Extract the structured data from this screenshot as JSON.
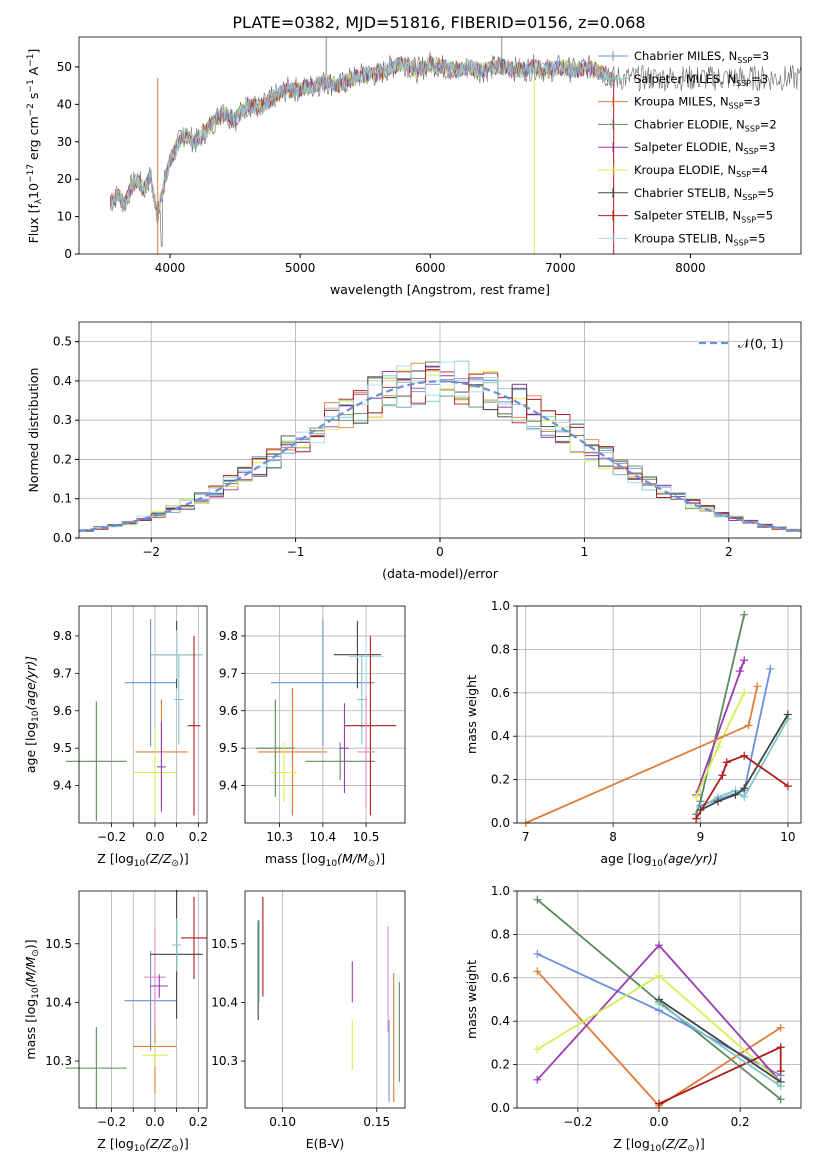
{
  "title": "PLATE=0382, MJD=51816, FIBERID=0156, z=0.068",
  "colors": {
    "c0": "#6a8fdc",
    "c1": "#7ec7c9",
    "c2": "#e07b3a",
    "c3": "#5b8a5e",
    "c4": "#9a3bb0",
    "c5": "#d6ee55",
    "c6": "#444444",
    "c7": "#b01a1a",
    "c8": "#a7dce4",
    "pink": "#e985c6"
  },
  "chart_data": [
    {
      "id": "spectrum",
      "type": "line",
      "xlabel": "wavelength [Angstrom, rest frame]",
      "ylabel": "Flux [f",
      "ylabel_parts": [
        "Flux [f",
        "λ",
        "10",
        "−17",
        " erg cm",
        "−2",
        " s",
        "−1",
        " A",
        "−1",
        "]"
      ],
      "xlim": [
        3300,
        8850
      ],
      "ylim": [
        0,
        58
      ],
      "xticks": [
        "4000",
        "5000",
        "6000",
        "7000",
        "8000"
      ],
      "yticks": [
        "0",
        "10",
        "20",
        "30",
        "40",
        "50"
      ],
      "x": [
        3550,
        3600,
        3650,
        3700,
        3750,
        3800,
        3850,
        3900,
        3950,
        4000,
        4100,
        4200,
        4300,
        4400,
        4500,
        4600,
        4700,
        4800,
        4900,
        5000,
        5100,
        5200,
        5300,
        5400,
        5500,
        5600,
        5700,
        5800,
        5900,
        6000,
        6100,
        6200,
        6300,
        6400,
        6500,
        6600,
        6700,
        6800,
        6900,
        7000,
        7100,
        7200,
        7300,
        7400
      ],
      "y": [
        14,
        16,
        13,
        18,
        20,
        17,
        21,
        10,
        18,
        25,
        32,
        30,
        34,
        38,
        36,
        40,
        39,
        42,
        44,
        44,
        45,
        46,
        45,
        47,
        48,
        48,
        50,
        51,
        49,
        51,
        50,
        49,
        50,
        49,
        50,
        50,
        49,
        50,
        49,
        50,
        49,
        50,
        49,
        47
      ],
      "legend": [
        {
          "label": "Chabrier MILES, N",
          "sub": "SSP",
          "tail": "=3",
          "color": "c0"
        },
        {
          "label": "Salpeter MILES, N",
          "sub": "SSP",
          "tail": "=3",
          "color": "c1"
        },
        {
          "label": "Kroupa MILES, N",
          "sub": "SSP",
          "tail": "=3",
          "color": "c2"
        },
        {
          "label": "Chabrier ELODIE, N",
          "sub": "SSP",
          "tail": "=2",
          "color": "c3"
        },
        {
          "label": "Salpeter ELODIE, N",
          "sub": "SSP",
          "tail": "=3",
          "color": "c4"
        },
        {
          "label": "Kroupa ELODIE, N",
          "sub": "SSP",
          "tail": "=4",
          "color": "c5"
        },
        {
          "label": "Chabrier STELIB, N",
          "sub": "SSP",
          "tail": "=5",
          "color": "c6"
        },
        {
          "label": "Salpeter STELIB, N",
          "sub": "SSP",
          "tail": "=5",
          "color": "c7"
        },
        {
          "label": "Kroupa STELIB, N",
          "sub": "SSP",
          "tail": "=5",
          "color": "c8"
        }
      ]
    },
    {
      "id": "residuals",
      "type": "line",
      "xlabel": "(data-model)/error",
      "ylabel": "Normed distribution",
      "xlim": [
        -2.5,
        2.5
      ],
      "ylim": [
        0,
        0.55
      ],
      "xticks": [
        "−2",
        "−1",
        "0",
        "1",
        "2"
      ],
      "yticks": [
        "0.0",
        "0.1",
        "0.2",
        "0.3",
        "0.4",
        "0.5"
      ],
      "grid": true,
      "legend_label": "𝒩(0, 1)",
      "gaussian": {
        "mu": 0,
        "sigma": 1
      }
    },
    {
      "id": "z-age",
      "type": "scatter",
      "xlabel": "Z [log",
      "xlabel_parts": [
        "Z [log",
        "10",
        "(Z/Z",
        "⊙",
        ")]"
      ],
      "ylabel_parts": [
        "age  [log",
        "10",
        "(age/yr)]"
      ],
      "xlim": [
        -0.35,
        0.24
      ],
      "ylim": [
        9.3,
        9.88
      ],
      "xticks": [
        -0.2,
        -0.1,
        0.0,
        0.1,
        0.2
      ],
      "xticklabels": [
        "−0.2",
        "",
        "0.0",
        "",
        "0.2"
      ],
      "yticks": [
        9.4,
        9.5,
        9.6,
        9.7,
        9.8
      ],
      "yticklabels": [
        "9.4",
        "9.5",
        "9.6",
        "9.7",
        "9.8"
      ],
      "points": [
        {
          "x": -0.27,
          "xerr": 0.14,
          "y": 9.465,
          "yerr": 0.16,
          "color": "c3"
        },
        {
          "x": -0.02,
          "xerr": 0.12,
          "y": 9.675,
          "yerr": 0.17,
          "color": "c0"
        },
        {
          "x": 0.03,
          "xerr": 0.12,
          "y": 9.49,
          "yerr": 0.14,
          "color": "c2"
        },
        {
          "x": 0.0,
          "xerr": 0.1,
          "y": 9.435,
          "yerr": 0.12,
          "color": "c5"
        },
        {
          "x": 0.1,
          "xerr": 0.12,
          "y": 9.75,
          "yerr": 0.09,
          "color": "c6"
        },
        {
          "x": 0.1,
          "xerr": 0.12,
          "y": 9.75,
          "yerr": 0.065,
          "color": "c8"
        },
        {
          "x": 0.11,
          "xerr": 0.02,
          "y": 9.63,
          "yerr": 0.12,
          "color": "c1"
        },
        {
          "x": 0.18,
          "xerr": 0.03,
          "y": 9.56,
          "yerr": 0.24,
          "color": "c7"
        },
        {
          "x": 0.03,
          "xerr": 0.02,
          "y": 9.45,
          "yerr": 0.12,
          "color": "c4"
        }
      ]
    },
    {
      "id": "mass-age",
      "type": "scatter",
      "xlabel_parts": [
        "mass [log",
        "10",
        "(M/M",
        "⊙",
        ")]"
      ],
      "xlim": [
        10.22,
        10.59
      ],
      "ylim": [
        9.3,
        9.88
      ],
      "xticks": [
        10.3,
        10.4,
        10.5
      ],
      "xticklabels": [
        "10.3",
        "10.4",
        "10.5"
      ],
      "yticks": [
        9.4,
        9.5,
        9.6,
        9.7,
        9.8
      ],
      "yticklabels": [
        "9.4",
        "9.5",
        "9.6",
        "9.7",
        "9.8"
      ],
      "points": [
        {
          "x": 10.29,
          "xerr": 0.045,
          "y": 9.5,
          "yerr": 0.13,
          "color": "c3"
        },
        {
          "x": 10.4,
          "xerr": 0.12,
          "y": 9.675,
          "yerr": 0.17,
          "color": "c0"
        },
        {
          "x": 10.33,
          "xerr": 0.08,
          "y": 9.49,
          "yerr": 0.17,
          "color": "c2"
        },
        {
          "x": 10.31,
          "xerr": 0.03,
          "y": 9.435,
          "yerr": 0.08,
          "color": "c5"
        },
        {
          "x": 10.44,
          "xerr": 0.08,
          "y": 9.465,
          "yerr": 0.05,
          "color": "c3"
        },
        {
          "x": 10.48,
          "xerr": 0.055,
          "y": 9.75,
          "yerr": 0.09,
          "color": "c6"
        },
        {
          "x": 10.5,
          "xerr": 0.04,
          "y": 9.745,
          "yerr": 0.07,
          "color": "c8"
        },
        {
          "x": 10.49,
          "xerr": 0.01,
          "y": 9.63,
          "yerr": 0.12,
          "color": "c1"
        },
        {
          "x": 10.51,
          "xerr": 0.06,
          "y": 9.56,
          "yerr": 0.24,
          "color": "c7"
        },
        {
          "x": 10.45,
          "xerr": 0.01,
          "y": 9.5,
          "yerr": 0.12,
          "color": "c4"
        },
        {
          "x": 10.5,
          "xerr": 0.02,
          "y": 9.49,
          "yerr": 0.15,
          "color": "pink"
        }
      ]
    },
    {
      "id": "age-weight",
      "type": "line",
      "xlabel_parts": [
        "age  [log",
        "10",
        "(age/yr)]"
      ],
      "ylabel": "mass weight",
      "xlim": [
        6.9,
        10.15
      ],
      "ylim": [
        0,
        1
      ],
      "xticks": [
        7,
        8,
        9,
        10
      ],
      "xticklabels": [
        "7",
        "8",
        "9",
        "10"
      ],
      "yticks": [
        0,
        0.2,
        0.4,
        0.6,
        0.8,
        1.0
      ],
      "yticklabels": [
        "0.0",
        "0.2",
        "0.4",
        "0.6",
        "0.8",
        "1.0"
      ],
      "grid": true,
      "series": [
        {
          "color": "c3",
          "x": [
            8.95,
            9.0,
            9.5
          ],
          "y": [
            0.04,
            0.1,
            0.96
          ]
        },
        {
          "color": "c4",
          "x": [
            8.95,
            9.5,
            9.45
          ],
          "y": [
            0.13,
            0.75,
            0.7
          ]
        },
        {
          "color": "c5",
          "x": [
            8.95,
            9.2,
            9.5
          ],
          "y": [
            0.12,
            0.35,
            0.6
          ]
        },
        {
          "color": "c0",
          "x": [
            9.0,
            9.5,
            9.8
          ],
          "y": [
            0.08,
            0.15,
            0.71
          ]
        },
        {
          "color": "c1",
          "x": [
            9.0,
            9.2,
            9.4,
            9.5,
            10.0
          ],
          "y": [
            0.07,
            0.12,
            0.15,
            0.12,
            0.48
          ]
        },
        {
          "color": "c6",
          "x": [
            9.0,
            9.2,
            9.4,
            9.5,
            10.0
          ],
          "y": [
            0.06,
            0.1,
            0.13,
            0.16,
            0.5
          ]
        },
        {
          "color": "c7",
          "x": [
            8.95,
            9.25,
            9.3,
            9.5,
            10.0
          ],
          "y": [
            0.02,
            0.22,
            0.28,
            0.31,
            0.17
          ]
        },
        {
          "color": "c2",
          "x": [
            7.0,
            9.55,
            9.65
          ],
          "y": [
            0.0,
            0.45,
            0.63
          ]
        }
      ]
    },
    {
      "id": "z-mass",
      "type": "scatter",
      "xlabel_parts": [
        "Z [log",
        "10",
        "(Z/Z",
        "⊙",
        ")]"
      ],
      "ylabel_parts": [
        "mass [log",
        "10",
        "(M/M",
        "⊙",
        ")]"
      ],
      "xlim": [
        -0.35,
        0.24
      ],
      "ylim": [
        10.22,
        10.59
      ],
      "xticks": [
        -0.2,
        -0.1,
        0.0,
        0.1,
        0.2
      ],
      "xticklabels": [
        "−0.2",
        "",
        "0.0",
        "",
        "0.2"
      ],
      "yticks": [
        10.3,
        10.4,
        10.5
      ],
      "yticklabels": [
        "10.3",
        "10.4",
        "10.5"
      ],
      "points": [
        {
          "x": -0.27,
          "xerr": 0.14,
          "y": 10.288,
          "yerr": 0.07,
          "color": "c3"
        },
        {
          "x": -0.02,
          "xerr": 0.12,
          "y": 10.403,
          "yerr": 0.085,
          "color": "c0"
        },
        {
          "x": 0.0,
          "xerr": 0.1,
          "y": 10.325,
          "yerr": 0.08,
          "color": "c2"
        },
        {
          "x": 0.0,
          "xerr": 0.06,
          "y": 10.31,
          "yerr": 0.02,
          "color": "c5"
        },
        {
          "x": 0.0,
          "xerr": 0.05,
          "y": 10.443,
          "yerr": 0.085,
          "color": "pink"
        },
        {
          "x": 0.02,
          "xerr": 0.04,
          "y": 10.428,
          "yerr": 0.02,
          "color": "c4"
        },
        {
          "x": 0.1,
          "xerr": 0.12,
          "y": 10.482,
          "yerr": 0.11,
          "color": "c6"
        },
        {
          "x": 0.1,
          "xerr": 0.02,
          "y": 10.498,
          "yerr": 0.045,
          "color": "c1"
        },
        {
          "x": 0.18,
          "xerr": 0.06,
          "y": 10.51,
          "yerr": 0.07,
          "color": "c7"
        }
      ]
    },
    {
      "id": "ebv-mass",
      "type": "scatter",
      "xlabel": "E(B-V)",
      "xlim": [
        0.08,
        0.165
      ],
      "ylim": [
        10.22,
        10.59
      ],
      "xticks": [
        0.1,
        0.15
      ],
      "xticklabels": [
        "0.10",
        "0.15"
      ],
      "yticks": [
        10.3,
        10.4,
        10.5
      ],
      "yticklabels": [
        "10.3",
        "10.4",
        "10.5"
      ],
      "points": [
        {
          "x": 0.087,
          "xerr": 0,
          "y": 10.455,
          "yerr": 0.085,
          "color": "c6"
        },
        {
          "x": 0.0875,
          "xerr": 0,
          "y": 10.47,
          "yerr": 0.07,
          "color": "c1"
        },
        {
          "x": 0.0895,
          "xerr": 0,
          "y": 10.495,
          "yerr": 0.085,
          "color": "c7"
        },
        {
          "x": 0.137,
          "xerr": 0,
          "y": 10.435,
          "yerr": 0.035,
          "color": "c4"
        },
        {
          "x": 0.137,
          "xerr": 0,
          "y": 10.328,
          "yerr": 0.043,
          "color": "c5"
        },
        {
          "x": 0.156,
          "xerr": 0,
          "y": 10.44,
          "yerr": 0.09,
          "color": "pink"
        },
        {
          "x": 0.1565,
          "xerr": 0,
          "y": 10.3,
          "yerr": 0.07,
          "color": "c0"
        },
        {
          "x": 0.159,
          "xerr": 0,
          "y": 10.34,
          "yerr": 0.11,
          "color": "c2"
        },
        {
          "x": 0.162,
          "xerr": 0,
          "y": 10.35,
          "yerr": 0.085,
          "color": "c3"
        }
      ]
    },
    {
      "id": "z-weight",
      "type": "line",
      "xlabel_parts": [
        "Z [log",
        "10",
        "(Z/Z",
        "⊙",
        ")]"
      ],
      "ylabel": "mass weight",
      "xlim": [
        -0.35,
        0.35
      ],
      "ylim": [
        0,
        1
      ],
      "xticks": [
        -0.2,
        0.0,
        0.2
      ],
      "xticklabels": [
        "−0.2",
        "0.0",
        "0.2"
      ],
      "yticks": [
        0,
        0.2,
        0.4,
        0.6,
        0.8,
        1.0
      ],
      "yticklabels": [
        "0.0",
        "0.2",
        "0.4",
        "0.6",
        "0.8",
        "1.0"
      ],
      "grid": true,
      "series": [
        {
          "color": "c3",
          "x": [
            -0.3,
            0.0,
            0.3
          ],
          "y": [
            0.96,
            0.49,
            0.04
          ]
        },
        {
          "color": "c0",
          "x": [
            -0.3,
            0.0,
            0.3
          ],
          "y": [
            0.71,
            0.45,
            0.15
          ]
        },
        {
          "color": "c2",
          "x": [
            -0.3,
            0.0,
            0.3
          ],
          "y": [
            0.63,
            0.01,
            0.37
          ]
        },
        {
          "color": "c4",
          "x": [
            -0.3,
            0.0,
            0.3
          ],
          "y": [
            0.13,
            0.75,
            0.12
          ]
        },
        {
          "color": "c5",
          "x": [
            -0.3,
            0.0,
            0.3
          ],
          "y": [
            0.27,
            0.61,
            0.12
          ]
        },
        {
          "color": "c7",
          "x": [
            0.0,
            0.3,
            0.3
          ],
          "y": [
            0.02,
            0.28,
            0.17
          ]
        },
        {
          "color": "c6",
          "x": [
            0.0,
            0.3
          ],
          "y": [
            0.5,
            0.12
          ]
        },
        {
          "color": "c1",
          "x": [
            0.0,
            0.3
          ],
          "y": [
            0.48,
            0.1
          ]
        }
      ]
    }
  ]
}
